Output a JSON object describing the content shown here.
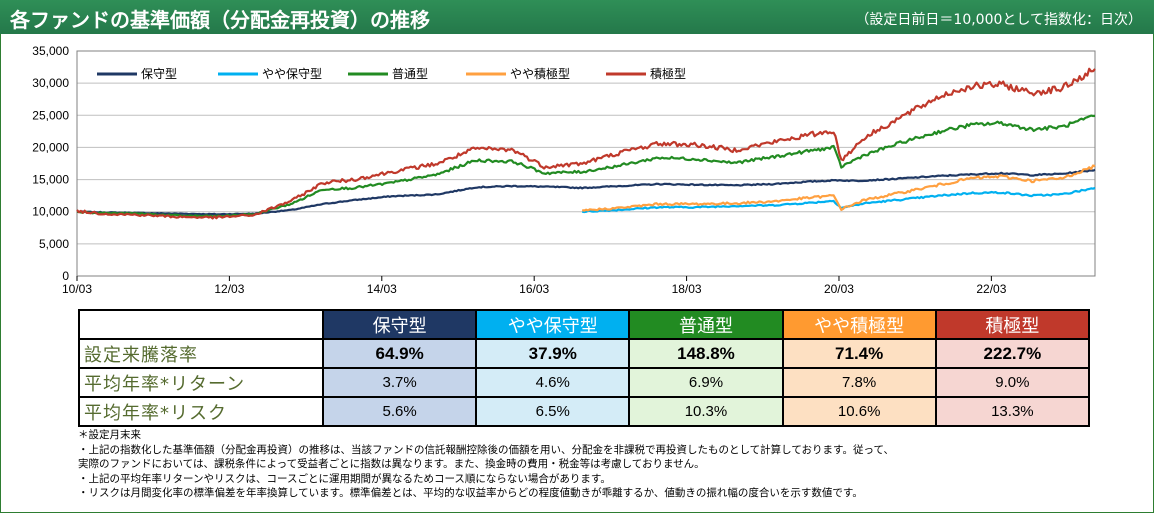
{
  "header": {
    "title": "各ファンドの基準価額（分配金再投資）の推移",
    "subtitle": "（設定日前日＝10,000として指数化：日次）"
  },
  "chart_data": {
    "type": "line",
    "x_ticks": [
      "10/03",
      "12/03",
      "14/03",
      "16/03",
      "18/03",
      "20/03",
      "22/03"
    ],
    "y_ticks": [
      "0",
      "5,000",
      "10,000",
      "15,000",
      "20,000",
      "25,000",
      "30,000",
      "35,000"
    ],
    "ylim": [
      0,
      35000
    ],
    "xlim_years": [
      2010.17,
      2023.53
    ],
    "grid": "horizontal",
    "legend_position": "top-left",
    "series": [
      {
        "name": "保守型",
        "color": "#1f3864",
        "start": 2010.17,
        "points": [
          [
            2010.17,
            10000
          ],
          [
            2010.5,
            9900
          ],
          [
            2011.0,
            9800
          ],
          [
            2011.5,
            9700
          ],
          [
            2012.0,
            9600
          ],
          [
            2012.5,
            9700
          ],
          [
            2013.0,
            10300
          ],
          [
            2013.4,
            11200
          ],
          [
            2013.8,
            11800
          ],
          [
            2014.3,
            12400
          ],
          [
            2014.9,
            12700
          ],
          [
            2015.4,
            13800
          ],
          [
            2015.9,
            14000
          ],
          [
            2016.3,
            13900
          ],
          [
            2016.8,
            13700
          ],
          [
            2017.3,
            14000
          ],
          [
            2017.8,
            14300
          ],
          [
            2018.3,
            14200
          ],
          [
            2018.8,
            14100
          ],
          [
            2019.3,
            14300
          ],
          [
            2019.8,
            14700
          ],
          [
            2020.15,
            14900
          ],
          [
            2020.4,
            14800
          ],
          [
            2020.9,
            15100
          ],
          [
            2021.4,
            15500
          ],
          [
            2021.9,
            15800
          ],
          [
            2022.3,
            16000
          ],
          [
            2022.7,
            15700
          ],
          [
            2023.1,
            15900
          ],
          [
            2023.53,
            16500
          ]
        ]
      },
      {
        "name": "やや保守型",
        "color": "#00b0f0",
        "start": 2016.8,
        "points": [
          [
            2016.8,
            10000
          ],
          [
            2017.3,
            10300
          ],
          [
            2017.8,
            10700
          ],
          [
            2018.3,
            10700
          ],
          [
            2018.8,
            10900
          ],
          [
            2019.3,
            11000
          ],
          [
            2019.8,
            11400
          ],
          [
            2020.1,
            11700
          ],
          [
            2020.2,
            10600
          ],
          [
            2020.5,
            11300
          ],
          [
            2021.0,
            11900
          ],
          [
            2021.5,
            12500
          ],
          [
            2021.9,
            12900
          ],
          [
            2022.3,
            13000
          ],
          [
            2022.7,
            12500
          ],
          [
            2023.1,
            12700
          ],
          [
            2023.53,
            13700
          ]
        ]
      },
      {
        "name": "普通型",
        "color": "#228b22",
        "start": 2010.17,
        "points": [
          [
            2010.17,
            10000
          ],
          [
            2010.5,
            9800
          ],
          [
            2011.0,
            9700
          ],
          [
            2011.5,
            9400
          ],
          [
            2012.0,
            9300
          ],
          [
            2012.5,
            9600
          ],
          [
            2013.0,
            11300
          ],
          [
            2013.4,
            13500
          ],
          [
            2013.8,
            13700
          ],
          [
            2014.3,
            14500
          ],
          [
            2014.9,
            15800
          ],
          [
            2015.4,
            18000
          ],
          [
            2015.9,
            17800
          ],
          [
            2016.3,
            16000
          ],
          [
            2016.8,
            16200
          ],
          [
            2017.3,
            17200
          ],
          [
            2017.8,
            18400
          ],
          [
            2018.3,
            18200
          ],
          [
            2018.8,
            17600
          ],
          [
            2019.3,
            18500
          ],
          [
            2019.8,
            19500
          ],
          [
            2020.1,
            20000
          ],
          [
            2020.2,
            17000
          ],
          [
            2020.5,
            18800
          ],
          [
            2021.0,
            20800
          ],
          [
            2021.5,
            22500
          ],
          [
            2021.9,
            23500
          ],
          [
            2022.3,
            23800
          ],
          [
            2022.7,
            22800
          ],
          [
            2023.1,
            23200
          ],
          [
            2023.53,
            24900
          ]
        ]
      },
      {
        "name": "やや積極型",
        "color": "#ffa040",
        "start": 2016.8,
        "points": [
          [
            2016.8,
            10200
          ],
          [
            2017.3,
            10600
          ],
          [
            2017.8,
            11200
          ],
          [
            2018.3,
            11200
          ],
          [
            2018.8,
            11300
          ],
          [
            2019.3,
            11600
          ],
          [
            2019.8,
            12200
          ],
          [
            2020.1,
            12500
          ],
          [
            2020.2,
            10400
          ],
          [
            2020.5,
            11800
          ],
          [
            2021.0,
            13000
          ],
          [
            2021.5,
            14200
          ],
          [
            2021.9,
            15200
          ],
          [
            2022.3,
            15500
          ],
          [
            2022.7,
            14800
          ],
          [
            2023.1,
            15200
          ],
          [
            2023.53,
            17100
          ]
        ]
      },
      {
        "name": "積極型",
        "color": "#c0392b",
        "start": 2010.17,
        "points": [
          [
            2010.17,
            10100
          ],
          [
            2010.5,
            9700
          ],
          [
            2011.0,
            9500
          ],
          [
            2011.5,
            9200
          ],
          [
            2012.0,
            9100
          ],
          [
            2012.5,
            9500
          ],
          [
            2013.0,
            11800
          ],
          [
            2013.4,
            14500
          ],
          [
            2013.8,
            15000
          ],
          [
            2014.3,
            16200
          ],
          [
            2014.9,
            17500
          ],
          [
            2015.4,
            19800
          ],
          [
            2015.9,
            19600
          ],
          [
            2016.3,
            17000
          ],
          [
            2016.8,
            17500
          ],
          [
            2017.3,
            19200
          ],
          [
            2017.8,
            20600
          ],
          [
            2018.3,
            20400
          ],
          [
            2018.8,
            19600
          ],
          [
            2019.3,
            20800
          ],
          [
            2019.8,
            22000
          ],
          [
            2020.1,
            22600
          ],
          [
            2020.2,
            18000
          ],
          [
            2020.5,
            21500
          ],
          [
            2021.0,
            24800
          ],
          [
            2021.5,
            28000
          ],
          [
            2021.9,
            29500
          ],
          [
            2022.3,
            29800
          ],
          [
            2022.7,
            28500
          ],
          [
            2023.1,
            29200
          ],
          [
            2023.53,
            32200
          ]
        ]
      }
    ]
  },
  "table": {
    "funds": [
      {
        "name": "保守型",
        "header_color": "#1f3864",
        "cell_color": "#c5d4ea"
      },
      {
        "name": "やや保守型",
        "header_color": "#00b0f0",
        "cell_color": "#d4ecf7"
      },
      {
        "name": "普通型",
        "header_color": "#228b22",
        "cell_color": "#e2f4da"
      },
      {
        "name": "やや積極型",
        "header_color": "#ff9a30",
        "cell_color": "#fde0c2"
      },
      {
        "name": "積極型",
        "header_color": "#c0392b",
        "cell_color": "#f6d6d2"
      }
    ],
    "rows": [
      {
        "label": "設定来騰落率",
        "values": [
          "64.9%",
          "37.9%",
          "148.8%",
          "71.4%",
          "222.7%"
        ]
      },
      {
        "label": "平均年率*リターン",
        "values": [
          "3.7%",
          "4.6%",
          "6.9%",
          "7.8%",
          "9.0%"
        ]
      },
      {
        "label": "平均年率*リスク",
        "values": [
          "5.6%",
          "6.5%",
          "10.3%",
          "10.6%",
          "13.3%"
        ]
      }
    ]
  },
  "notes": [
    "＊設定月末来",
    "・上記の指数化した基準価額（分配金再投資）の推移は、当該ファンドの信託報酬控除後の価額を用い、分配金を非課税で再投資したものとして計算しております。従って、",
    "実際のファンドにおいては、課税条件によって受益者ごとに指数は異なります。また、換金時の費用・税金等は考慮しておりません。",
    "・上記の平均年率リターンやリスクは、コースごとに運用期間が異なるためコース順にならない場合があります。",
    "・リスクは月間変化率の標準偏差を年率換算しています。標準偏差とは、平均的な収益率からどの程度値動きが乖離するか、値動きの振れ幅の度合いを示す数値です。"
  ]
}
